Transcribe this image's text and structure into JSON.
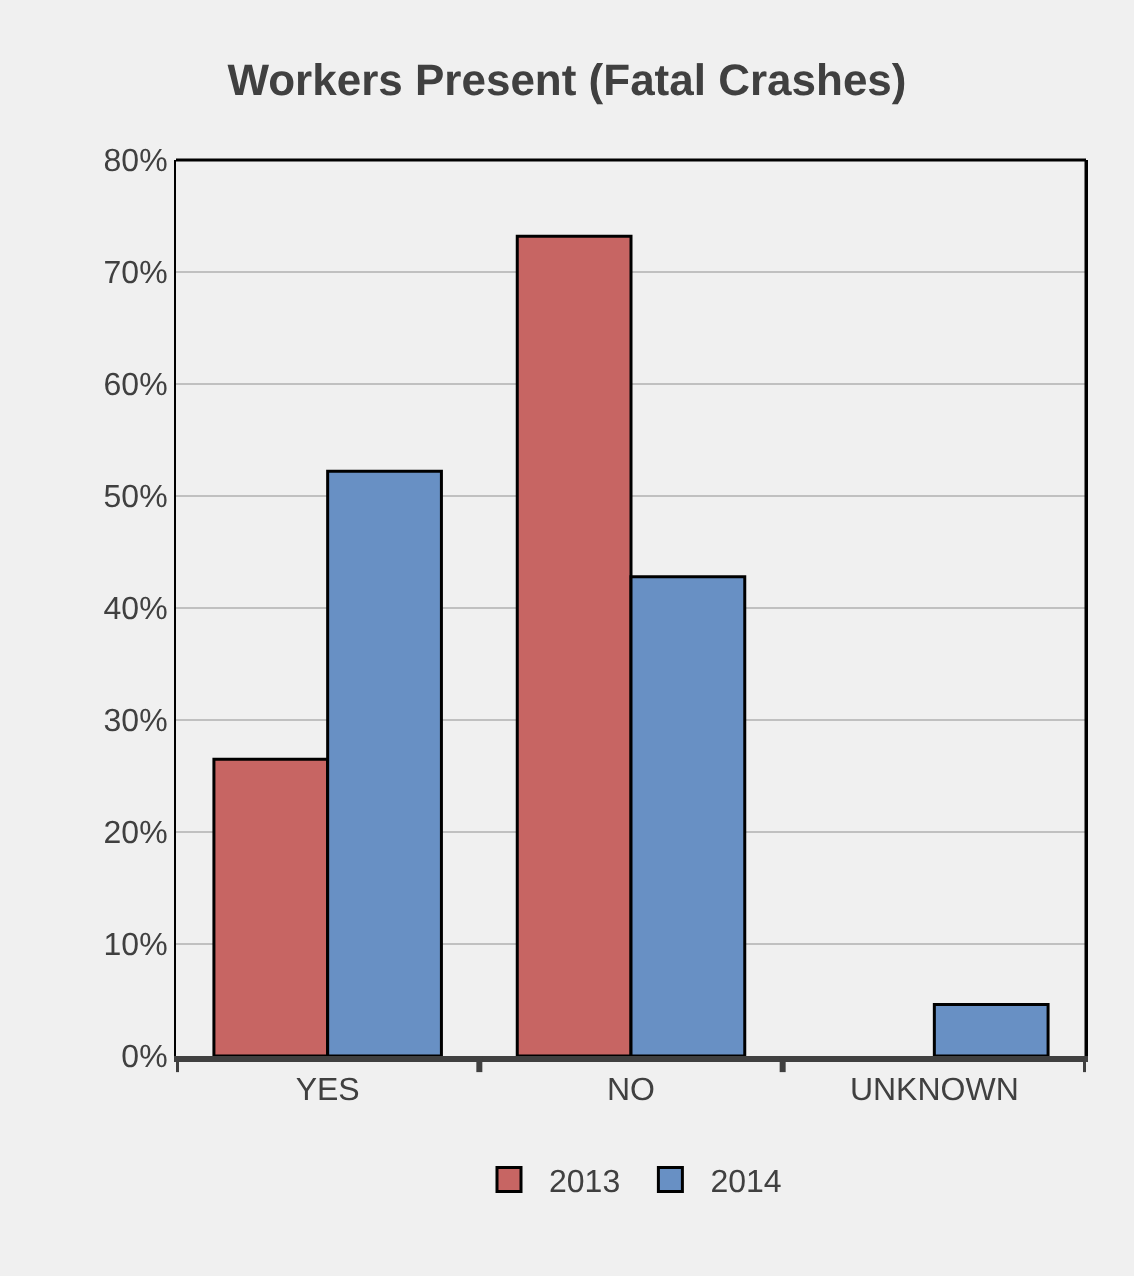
{
  "chart_data": {
    "type": "bar",
    "title": "Workers Present (Fatal Crashes)",
    "categories": [
      "YES",
      "NO",
      "UNKNOWN"
    ],
    "series": [
      {
        "name": "2013",
        "color": "#c76563",
        "values": [
          26.5,
          73.2,
          null
        ]
      },
      {
        "name": "2014",
        "color": "#6890c4",
        "values": [
          52.2,
          42.8,
          4.6
        ]
      }
    ],
    "ylim": [
      0,
      80
    ],
    "yticks": [
      {
        "value": 0,
        "label": "0%"
      },
      {
        "value": 10,
        "label": "10%"
      },
      {
        "value": 20,
        "label": "20%"
      },
      {
        "value": 30,
        "label": "30%"
      },
      {
        "value": 40,
        "label": "40%"
      },
      {
        "value": 50,
        "label": "50%"
      },
      {
        "value": 60,
        "label": "60%"
      },
      {
        "value": 70,
        "label": "70%"
      },
      {
        "value": 80,
        "label": "80%"
      }
    ],
    "grid": "y",
    "legend": "bottom"
  }
}
